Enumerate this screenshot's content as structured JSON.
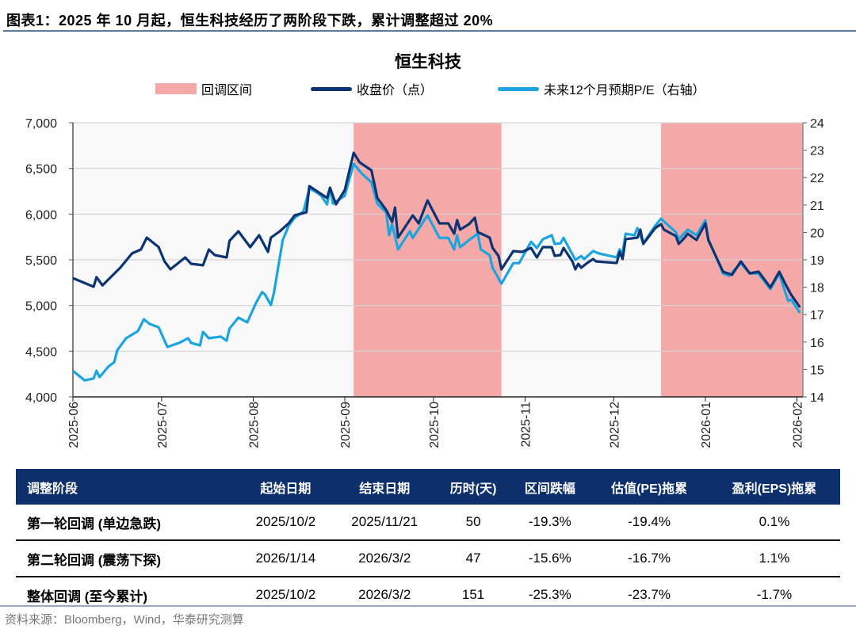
{
  "figure": {
    "title": "图表1：2025 年 10 月起，恒生科技经历了两阶段下跌，累计调整超过 20%",
    "source": "资料来源：Bloomberg，Wind，华泰研究测算"
  },
  "legend": {
    "shade": "回调区间",
    "close": "收盘价（点）",
    "pe": "未来12个月预期P/E（右轴）"
  },
  "colors": {
    "close": "#0d3472",
    "pe": "#1ba5e0",
    "shade": "#f4a9a8",
    "header": "#0d2f6b"
  },
  "chart_data": {
    "type": "line",
    "title": "恒生科技",
    "grid": true,
    "legend_position": "top",
    "x_range": [
      "2025-06-01",
      "2026-02-03"
    ],
    "x_ticks": [
      "2025-06",
      "2025-07",
      "2025-08",
      "2025-09",
      "2025-10",
      "2025-11",
      "2025-12",
      "2026-01",
      "2026-02"
    ],
    "y_left": {
      "range": [
        4000,
        7000
      ],
      "ticks": [
        "4,000",
        "4,500",
        "5,000",
        "5,500",
        "6,000",
        "6,500",
        "7,000"
      ]
    },
    "y_right": {
      "range": [
        14,
        24
      ],
      "ticks": [
        "14",
        "15",
        "16",
        "17",
        "18",
        "19",
        "20",
        "21",
        "22",
        "23",
        "24"
      ]
    },
    "shaded_ranges": [
      [
        "2025-09-04",
        "2025-10-24"
      ],
      [
        "2025-12-17",
        "2026-02-03"
      ]
    ],
    "series": [
      {
        "name": "收盘价（点）",
        "axis": "left",
        "points": [
          [
            "2025-06-01",
            5300
          ],
          [
            "2025-06-08",
            5205
          ],
          [
            "2025-06-09",
            5310
          ],
          [
            "2025-06-11",
            5220
          ],
          [
            "2025-06-17",
            5413
          ],
          [
            "2025-06-21",
            5570
          ],
          [
            "2025-06-24",
            5613
          ],
          [
            "2025-06-26",
            5743
          ],
          [
            "2025-06-30",
            5640
          ],
          [
            "2025-07-02",
            5483
          ],
          [
            "2025-07-04",
            5396
          ],
          [
            "2025-07-09",
            5526
          ],
          [
            "2025-07-11",
            5457
          ],
          [
            "2025-07-15",
            5440
          ],
          [
            "2025-07-17",
            5613
          ],
          [
            "2025-07-19",
            5552
          ],
          [
            "2025-07-23",
            5526
          ],
          [
            "2025-07-24",
            5708
          ],
          [
            "2025-07-27",
            5812
          ],
          [
            "2025-07-31",
            5639
          ],
          [
            "2025-08-03",
            5769
          ],
          [
            "2025-08-06",
            5587
          ],
          [
            "2025-08-07",
            5743
          ],
          [
            "2025-08-10",
            5812
          ],
          [
            "2025-08-13",
            5899
          ],
          [
            "2025-08-15",
            5986
          ],
          [
            "2025-08-19",
            6020
          ],
          [
            "2025-08-20",
            6306
          ],
          [
            "2025-08-22",
            6263
          ],
          [
            "2025-08-26",
            6176
          ],
          [
            "2025-08-27",
            6289
          ],
          [
            "2025-08-29",
            6107
          ],
          [
            "2025-09-01",
            6263
          ],
          [
            "2025-09-04",
            6671
          ],
          [
            "2025-09-06",
            6567
          ],
          [
            "2025-09-10",
            6480
          ],
          [
            "2025-09-12",
            6176
          ],
          [
            "2025-09-15",
            6046
          ],
          [
            "2025-09-17",
            5916
          ],
          [
            "2025-09-18",
            6072
          ],
          [
            "2025-09-19",
            5743
          ],
          [
            "2025-09-24",
            5986
          ],
          [
            "2025-09-26",
            5899
          ],
          [
            "2025-09-29",
            6150
          ],
          [
            "2025-10-03",
            5899
          ],
          [
            "2025-10-06",
            5899
          ],
          [
            "2025-10-08",
            5786
          ],
          [
            "2025-10-09",
            5934
          ],
          [
            "2025-10-10",
            5830
          ],
          [
            "2025-10-13",
            5890
          ],
          [
            "2025-10-15",
            5960
          ],
          [
            "2025-10-16",
            5804
          ],
          [
            "2025-10-20",
            5743
          ],
          [
            "2025-10-21",
            5630
          ],
          [
            "2025-10-23",
            5544
          ],
          [
            "2025-10-24",
            5396
          ],
          [
            "2025-10-28",
            5595
          ],
          [
            "2025-10-31",
            5587
          ],
          [
            "2025-11-03",
            5630
          ],
          [
            "2025-11-05",
            5526
          ],
          [
            "2025-11-07",
            5639
          ],
          [
            "2025-11-10",
            5639
          ],
          [
            "2025-11-11",
            5544
          ],
          [
            "2025-11-13",
            5552
          ],
          [
            "2025-11-14",
            5630
          ],
          [
            "2025-11-17",
            5483
          ],
          [
            "2025-11-18",
            5396
          ],
          [
            "2025-11-19",
            5457
          ],
          [
            "2025-11-20",
            5413
          ],
          [
            "2025-11-22",
            5465
          ],
          [
            "2025-11-24",
            5509
          ],
          [
            "2025-11-25",
            5483
          ],
          [
            "2025-12-02",
            5465
          ],
          [
            "2025-12-03",
            5587
          ],
          [
            "2025-12-04",
            5509
          ],
          [
            "2025-12-05",
            5726
          ],
          [
            "2025-12-09",
            5743
          ],
          [
            "2025-12-10",
            5830
          ],
          [
            "2025-12-11",
            5674
          ],
          [
            "2025-12-15",
            5847
          ],
          [
            "2025-12-17",
            5890
          ],
          [
            "2025-12-18",
            5830
          ],
          [
            "2025-12-22",
            5760
          ],
          [
            "2025-12-23",
            5674
          ],
          [
            "2025-12-25",
            5743
          ],
          [
            "2025-12-26",
            5786
          ],
          [
            "2025-12-29",
            5717
          ],
          [
            "2026-01-01",
            5899
          ],
          [
            "2026-01-02",
            5717
          ],
          [
            "2026-01-07",
            5370
          ],
          [
            "2026-01-10",
            5335
          ],
          [
            "2026-01-13",
            5483
          ],
          [
            "2026-01-16",
            5353
          ],
          [
            "2026-01-19",
            5370
          ],
          [
            "2026-01-23",
            5197
          ],
          [
            "2026-01-26",
            5370
          ],
          [
            "2026-01-28",
            5240
          ],
          [
            "2026-01-30",
            5119
          ],
          [
            "2026-02-02",
            4980
          ]
        ]
      },
      {
        "name": "未来12个月预期P/E（右轴）",
        "axis": "right",
        "points": [
          [
            "2025-06-01",
            14.95
          ],
          [
            "2025-06-05",
            14.6
          ],
          [
            "2025-06-08",
            14.67
          ],
          [
            "2025-06-09",
            14.95
          ],
          [
            "2025-06-10",
            14.72
          ],
          [
            "2025-06-13",
            15.1
          ],
          [
            "2025-06-15",
            15.27
          ],
          [
            "2025-06-16",
            15.7
          ],
          [
            "2025-06-19",
            16.14
          ],
          [
            "2025-06-23",
            16.4
          ],
          [
            "2025-06-25",
            16.83
          ],
          [
            "2025-06-27",
            16.66
          ],
          [
            "2025-06-30",
            16.54
          ],
          [
            "2025-07-02",
            16.05
          ],
          [
            "2025-07-03",
            15.82
          ],
          [
            "2025-07-07",
            15.97
          ],
          [
            "2025-07-10",
            16.14
          ],
          [
            "2025-07-11",
            15.97
          ],
          [
            "2025-07-14",
            15.88
          ],
          [
            "2025-07-15",
            16.37
          ],
          [
            "2025-07-17",
            16.14
          ],
          [
            "2025-07-21",
            16.2
          ],
          [
            "2025-07-23",
            16.05
          ],
          [
            "2025-07-24",
            16.49
          ],
          [
            "2025-07-27",
            16.89
          ],
          [
            "2025-07-30",
            16.72
          ],
          [
            "2025-08-02",
            17.44
          ],
          [
            "2025-08-04",
            17.82
          ],
          [
            "2025-08-05",
            17.73
          ],
          [
            "2025-08-07",
            17.35
          ],
          [
            "2025-08-08",
            17.79
          ],
          [
            "2025-08-11",
            19.72
          ],
          [
            "2025-08-13",
            20.24
          ],
          [
            "2025-08-15",
            20.53
          ],
          [
            "2025-08-18",
            20.76
          ],
          [
            "2025-08-20",
            21.6
          ],
          [
            "2025-08-22",
            21.49
          ],
          [
            "2025-08-24",
            21.34
          ],
          [
            "2025-08-26",
            21.02
          ],
          [
            "2025-08-27",
            21.63
          ],
          [
            "2025-08-28",
            21.05
          ],
          [
            "2025-09-01",
            21.34
          ],
          [
            "2025-09-04",
            22.5
          ],
          [
            "2025-09-07",
            22.12
          ],
          [
            "2025-09-10",
            21.83
          ],
          [
            "2025-09-12",
            21.05
          ],
          [
            "2025-09-15",
            20.73
          ],
          [
            "2025-09-16",
            19.9
          ],
          [
            "2025-09-17",
            20.3
          ],
          [
            "2025-09-19",
            19.38
          ],
          [
            "2025-09-23",
            20.04
          ],
          [
            "2025-09-24",
            19.8
          ],
          [
            "2025-09-29",
            20.62
          ],
          [
            "2025-10-03",
            19.8
          ],
          [
            "2025-10-06",
            19.8
          ],
          [
            "2025-10-08",
            19.38
          ],
          [
            "2025-10-09",
            19.9
          ],
          [
            "2025-10-10",
            19.46
          ],
          [
            "2025-10-13",
            19.72
          ],
          [
            "2025-10-16",
            19.95
          ],
          [
            "2025-10-17",
            19.38
          ],
          [
            "2025-10-20",
            19.17
          ],
          [
            "2025-10-21",
            18.71
          ],
          [
            "2025-10-24",
            18.13
          ],
          [
            "2025-10-28",
            18.88
          ],
          [
            "2025-10-30",
            18.88
          ],
          [
            "2025-11-03",
            19.66
          ],
          [
            "2025-11-05",
            19.43
          ],
          [
            "2025-11-07",
            19.75
          ],
          [
            "2025-11-10",
            19.9
          ],
          [
            "2025-11-11",
            19.58
          ],
          [
            "2025-11-13",
            19.6
          ],
          [
            "2025-11-14",
            19.8
          ],
          [
            "2025-11-18",
            19.0
          ],
          [
            "2025-11-20",
            19.14
          ],
          [
            "2025-11-21",
            19.03
          ],
          [
            "2025-11-24",
            19.32
          ],
          [
            "2025-11-26",
            19.23
          ],
          [
            "2025-12-02",
            19.09
          ],
          [
            "2025-12-03",
            19.38
          ],
          [
            "2025-12-04",
            19.23
          ],
          [
            "2025-12-05",
            19.95
          ],
          [
            "2025-12-08",
            19.9
          ],
          [
            "2025-12-09",
            20.16
          ],
          [
            "2025-12-11",
            19.6
          ],
          [
            "2025-12-15",
            20.24
          ],
          [
            "2025-12-17",
            20.5
          ],
          [
            "2025-12-19",
            20.3
          ],
          [
            "2025-12-22",
            20.01
          ],
          [
            "2025-12-23",
            19.75
          ],
          [
            "2025-12-26",
            20.1
          ],
          [
            "2025-12-29",
            19.9
          ],
          [
            "2026-01-01",
            20.44
          ],
          [
            "2026-01-02",
            19.75
          ],
          [
            "2026-01-07",
            18.5
          ],
          [
            "2026-01-09",
            18.42
          ],
          [
            "2026-01-13",
            18.88
          ],
          [
            "2026-01-16",
            18.5
          ],
          [
            "2026-01-19",
            18.5
          ],
          [
            "2026-01-23",
            17.93
          ],
          [
            "2026-01-26",
            18.5
          ],
          [
            "2026-01-29",
            17.5
          ],
          [
            "2026-01-30",
            17.55
          ],
          [
            "2026-02-02",
            17.06
          ]
        ]
      }
    ]
  },
  "table": {
    "headers": [
      "调整阶段",
      "起始日期",
      "结束日期",
      "历时(天)",
      "区间跌幅",
      "估值(PE)拖累",
      "盈利(EPS)拖累"
    ],
    "rows": [
      [
        "第一轮回调 (单边急跌)",
        "2025/10/2",
        "2025/11/21",
        "50",
        "-19.3%",
        "-19.4%",
        "0.1%"
      ],
      [
        "第二轮回调 (震荡下探)",
        "2026/1/14",
        "2026/3/2",
        "47",
        "-15.6%",
        "-16.7%",
        "1.1%"
      ],
      [
        "整体回调 (至今累计)",
        "2025/10/2",
        "2026/3/2",
        "151",
        "-25.3%",
        "-23.7%",
        "-1.7%"
      ]
    ]
  }
}
